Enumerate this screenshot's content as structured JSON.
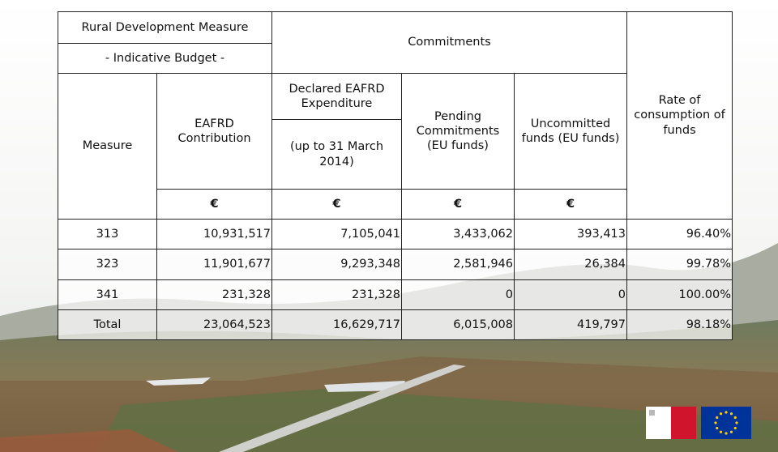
{
  "table": {
    "header": {
      "title_line1": "Rural Development Measure",
      "title_line2": "- Indicative Budget -",
      "commitments": "Commitments",
      "rate": "Rate of consumption of funds",
      "measure": "Measure",
      "eafrd_contribution": "EAFRD Contribution",
      "declared": "Declared EAFRD Expenditure",
      "declared_period": "(up to 31 March 2014)",
      "pending": "Pending Commitments (EU funds)",
      "uncommitted": "Uncommitted funds (EU funds)"
    },
    "currency_row": [
      "€",
      "€",
      "€",
      "€"
    ],
    "rows": [
      [
        "313",
        "10,931,517",
        "7,105,041",
        "3,433,062",
        "393,413",
        "96.40%"
      ],
      [
        "323",
        "11,901,677",
        "9,293,348",
        "2,581,946",
        "26,384",
        "99.78%"
      ],
      [
        "341",
        "231,328",
        "231,328",
        "0",
        "0",
        "100.00%"
      ],
      [
        "Total",
        "23,064,523",
        "16,629,717",
        "6,015,008",
        "419,797",
        "98.18%"
      ]
    ]
  }
}
